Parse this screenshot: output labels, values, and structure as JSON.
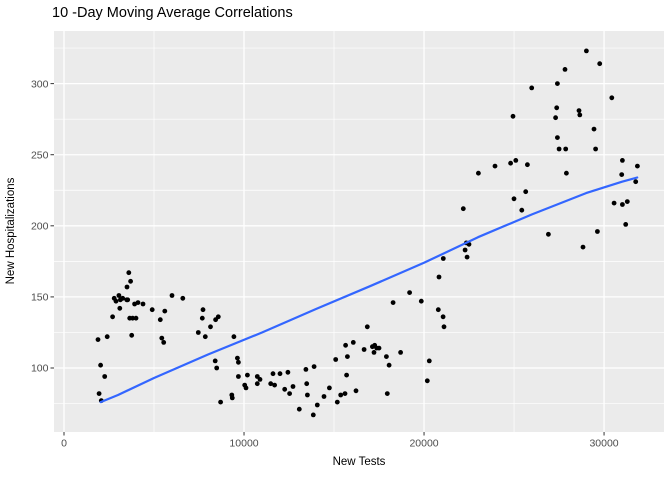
{
  "title": "10 -Day Moving Average Correlations",
  "x_axis": {
    "label": "New Tests",
    "ticks": [
      0,
      10000,
      20000,
      30000
    ],
    "minor_ticks": [
      5000,
      15000,
      25000
    ]
  },
  "y_axis": {
    "label": "New Hospitalizations",
    "ticks": [
      100,
      150,
      200,
      250,
      300
    ],
    "minor_ticks": [
      75,
      125,
      175,
      225,
      275,
      325
    ]
  },
  "colors": {
    "background": "#FFFFFF",
    "panel_bg": "#EBEBEB",
    "grid": "#FFFFFF",
    "point": "#000000",
    "smooth_line": "#3366FF",
    "tick_label": "#4D4D4D",
    "tick_mark": "#333333",
    "axis_title": "#000000"
  },
  "chart_data": {
    "type": "scatter",
    "title": "10 -Day Moving Average Correlations",
    "xlabel": "New Tests",
    "ylabel": "New Hospitalizations",
    "xlim": [
      -556,
      33330
    ],
    "ylim": [
      55,
      337
    ],
    "grid": "major-and-minor white on gray panel",
    "legend": "none",
    "points": [
      [
        1890,
        120
      ],
      [
        1950,
        82
      ],
      [
        2030,
        102
      ],
      [
        2070,
        77
      ],
      [
        2260,
        94
      ],
      [
        2400,
        122
      ],
      [
        2700,
        136
      ],
      [
        2790,
        149
      ],
      [
        2890,
        147
      ],
      [
        3050,
        151
      ],
      [
        3100,
        142
      ],
      [
        3130,
        148
      ],
      [
        3260,
        149
      ],
      [
        3480,
        148
      ],
      [
        3500,
        157
      ],
      [
        3540,
        148
      ],
      [
        3600,
        167
      ],
      [
        3650,
        135
      ],
      [
        3700,
        161
      ],
      [
        3760,
        123
      ],
      [
        3810,
        135
      ],
      [
        3920,
        145
      ],
      [
        4000,
        135
      ],
      [
        4110,
        146
      ],
      [
        4390,
        145
      ],
      [
        4900,
        141
      ],
      [
        5350,
        134
      ],
      [
        5430,
        121
      ],
      [
        5540,
        118
      ],
      [
        5600,
        140
      ],
      [
        6000,
        151
      ],
      [
        6600,
        149
      ],
      [
        7460,
        125
      ],
      [
        7680,
        135
      ],
      [
        7720,
        141
      ],
      [
        7850,
        122
      ],
      [
        8140,
        129
      ],
      [
        8420,
        134
      ],
      [
        8400,
        105
      ],
      [
        8480,
        100
      ],
      [
        8570,
        136
      ],
      [
        8700,
        76
      ],
      [
        9320,
        81
      ],
      [
        9440,
        122
      ],
      [
        9350,
        79
      ],
      [
        9690,
        94
      ],
      [
        9630,
        107
      ],
      [
        9690,
        104
      ],
      [
        10040,
        88
      ],
      [
        10110,
        86
      ],
      [
        10190,
        95
      ],
      [
        10740,
        94
      ],
      [
        10740,
        89
      ],
      [
        10890,
        92
      ],
      [
        11480,
        89
      ],
      [
        11610,
        96
      ],
      [
        11700,
        88
      ],
      [
        12000,
        96
      ],
      [
        12260,
        85
      ],
      [
        12440,
        97
      ],
      [
        12530,
        82
      ],
      [
        12720,
        87
      ],
      [
        13070,
        71
      ],
      [
        13440,
        99
      ],
      [
        13480,
        89
      ],
      [
        13520,
        81
      ],
      [
        13850,
        67
      ],
      [
        13890,
        101
      ],
      [
        14070,
        74
      ],
      [
        14440,
        80
      ],
      [
        14740,
        86
      ],
      [
        15090,
        106
      ],
      [
        15180,
        76
      ],
      [
        15370,
        81
      ],
      [
        15610,
        82
      ],
      [
        15640,
        116
      ],
      [
        15700,
        95
      ],
      [
        15740,
        108
      ],
      [
        16070,
        118
      ],
      [
        16220,
        84
      ],
      [
        16670,
        113
      ],
      [
        16850,
        129
      ],
      [
        17130,
        115
      ],
      [
        17220,
        111
      ],
      [
        17260,
        116
      ],
      [
        17370,
        114
      ],
      [
        17500,
        114
      ],
      [
        17910,
        108
      ],
      [
        17960,
        82
      ],
      [
        18060,
        102
      ],
      [
        18280,
        146
      ],
      [
        18700,
        111
      ],
      [
        19200,
        153
      ],
      [
        19850,
        147
      ],
      [
        20180,
        91
      ],
      [
        20290,
        105
      ],
      [
        20790,
        141
      ],
      [
        20830,
        164
      ],
      [
        21060,
        136
      ],
      [
        21110,
        129
      ],
      [
        21070,
        177
      ],
      [
        22180,
        212
      ],
      [
        22280,
        183
      ],
      [
        22350,
        188
      ],
      [
        22390,
        178
      ],
      [
        22500,
        187
      ],
      [
        23020,
        237
      ],
      [
        23940,
        242
      ],
      [
        24810,
        244
      ],
      [
        24940,
        277
      ],
      [
        25000,
        219
      ],
      [
        25100,
        246
      ],
      [
        25430,
        211
      ],
      [
        25650,
        224
      ],
      [
        25740,
        243
      ],
      [
        25980,
        297
      ],
      [
        26910,
        194
      ],
      [
        27310,
        276
      ],
      [
        27370,
        283
      ],
      [
        27410,
        300
      ],
      [
        27410,
        262
      ],
      [
        27500,
        254
      ],
      [
        27830,
        310
      ],
      [
        27870,
        254
      ],
      [
        27910,
        237
      ],
      [
        28610,
        281
      ],
      [
        28650,
        278
      ],
      [
        28830,
        185
      ],
      [
        29020,
        323
      ],
      [
        29440,
        268
      ],
      [
        29530,
        254
      ],
      [
        29630,
        196
      ],
      [
        29760,
        314
      ],
      [
        30430,
        290
      ],
      [
        30560,
        216
      ],
      [
        30980,
        236
      ],
      [
        31020,
        246
      ],
      [
        31020,
        215
      ],
      [
        31200,
        201
      ],
      [
        31290,
        217
      ],
      [
        31760,
        231
      ],
      [
        31850,
        242
      ]
    ],
    "smooth_line": {
      "name": "linear-smooth-fit",
      "color": "#3366FF",
      "points": [
        [
          2030,
          76
        ],
        [
          3000,
          81
        ],
        [
          5000,
          93
        ],
        [
          8000,
          109.5
        ],
        [
          11000,
          125
        ],
        [
          14000,
          141.5
        ],
        [
          17000,
          157.5
        ],
        [
          20000,
          174
        ],
        [
          23000,
          192
        ],
        [
          26000,
          208
        ],
        [
          29000,
          223
        ],
        [
          31000,
          231
        ],
        [
          31840,
          234
        ]
      ]
    }
  }
}
